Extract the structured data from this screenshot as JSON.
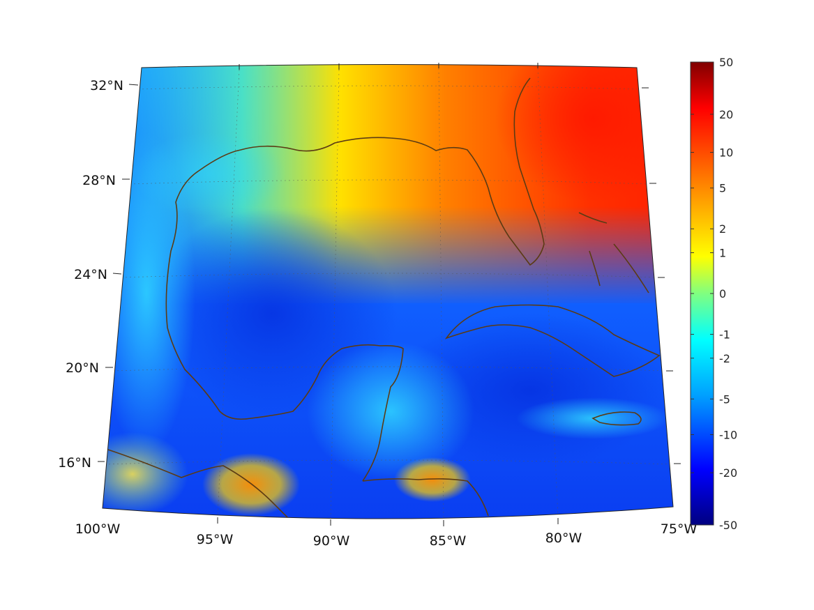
{
  "map": {
    "type": "heatmap",
    "projection": "conic",
    "colormap": "jet",
    "coastline_color": "#5b3b14",
    "gridlines": "dotted",
    "lon_range": [
      -100,
      -75
    ],
    "lat_range": [
      14,
      33
    ],
    "lon_ticks": [
      {
        "value": -100,
        "label": "100°W"
      },
      {
        "value": -95,
        "label": "95°W"
      },
      {
        "value": -90,
        "label": "90°W"
      },
      {
        "value": -85,
        "label": "85°W"
      },
      {
        "value": -80,
        "label": "80°W"
      },
      {
        "value": -75,
        "label": "75°W"
      }
    ],
    "lat_ticks": [
      {
        "value": 32,
        "label": "32°N"
      },
      {
        "value": 28,
        "label": "28°N"
      },
      {
        "value": 24,
        "label": "24°N"
      },
      {
        "value": 20,
        "label": "20°N"
      },
      {
        "value": 16,
        "label": "16°N"
      }
    ]
  },
  "colorbar": {
    "placement": "right",
    "scale": "symmetric-log",
    "ticks": [
      {
        "value": 50,
        "label": "50"
      },
      {
        "value": 20,
        "label": "20"
      },
      {
        "value": 10,
        "label": "10"
      },
      {
        "value": 5,
        "label": "5"
      },
      {
        "value": 2,
        "label": "2"
      },
      {
        "value": 1,
        "label": "1"
      },
      {
        "value": 0,
        "label": "0"
      },
      {
        "value": -1,
        "label": "-1"
      },
      {
        "value": -2,
        "label": "-2"
      },
      {
        "value": -5,
        "label": "-5"
      },
      {
        "value": -10,
        "label": "-10"
      },
      {
        "value": -20,
        "label": "-20"
      },
      {
        "value": -50,
        "label": "-50"
      }
    ],
    "colors": {
      "top": "#800000",
      "upper": "#ff0000",
      "mid_high": "#ffa000",
      "mid": "#80ff80",
      "mid_low": "#00c0ff",
      "lower": "#0000ff",
      "bottom": "#000080"
    }
  }
}
